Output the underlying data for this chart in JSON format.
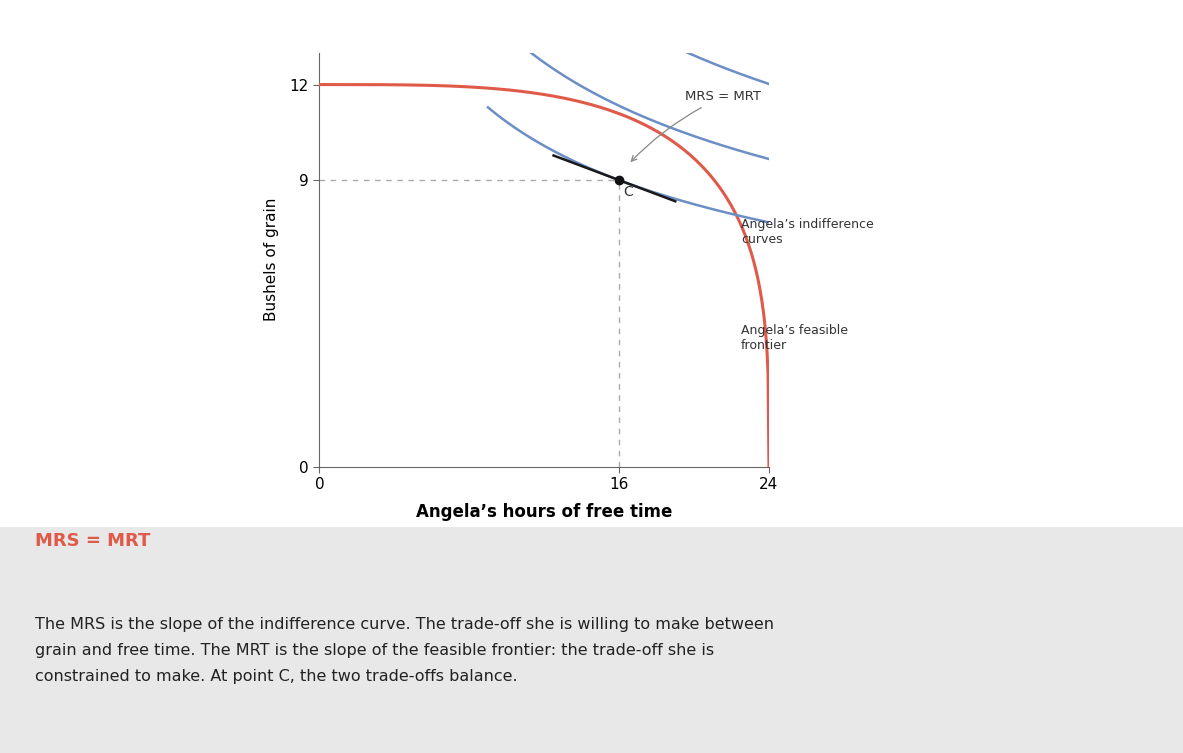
{
  "xlabel": "Angela’s hours of free time",
  "ylabel": "Bushels of grain",
  "xlim": [
    0,
    24
  ],
  "ylim": [
    0,
    13
  ],
  "xticks": [
    0,
    16,
    24
  ],
  "yticks": [
    0,
    9,
    12
  ],
  "point_C": [
    16,
    9
  ],
  "point_C_label": "C",
  "feasible_frontier_color": "#e05a4a",
  "indifference_color": "#6b8ec4",
  "tangent_line_color": "#1a1a1a",
  "dashed_line_color": "#aaaaaa",
  "background_color": "#ffffff",
  "outer_bg": "#e8e8e8",
  "annotation_MRS_MRT": "MRS = MRT",
  "annotation_indiff": "Angela’s indifference\ncurves",
  "annotation_feasible": "Angela’s feasible\nfrontier",
  "caption_title": "MRS = MRT",
  "caption_title_color": "#e05a4a",
  "caption_body": "The MRS is the slope of the indifference curve. The trade-off she is willing to make between\ngrain and free time. The MRT is the slope of the feasible frontier: the trade-off she is\nconstrained to make. At point C, the two trade-offs balance.",
  "caption_color": "#222222",
  "ff_alpha": 3.5,
  "ic_alpha": 1.8
}
